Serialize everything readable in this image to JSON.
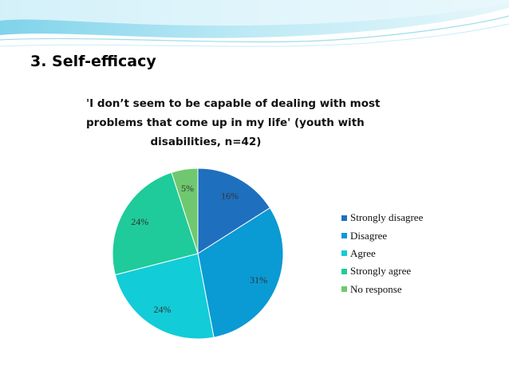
{
  "slide": {
    "heading": "3. Self-efficacy"
  },
  "chart_data": {
    "type": "pie",
    "title_lines": [
      "'I don’t seem to be capable of dealing with most",
      "problems that come up in my life' (youth with",
      "disabilities, n=42)"
    ],
    "categories": [
      "Strongly disagree",
      "Disagree",
      "Agree",
      "Strongly agree",
      "No response"
    ],
    "values": [
      16,
      31,
      24,
      24,
      5
    ],
    "data_labels": [
      "16%",
      "31%",
      "24%",
      "24%",
      "5%"
    ],
    "colors": [
      "#1F6FBF",
      "#0A9AD4",
      "#12CCD8",
      "#1FCB9A",
      "#6FC86F"
    ],
    "legend_position": "right",
    "start_angle_deg": 0,
    "direction": "clockwise"
  }
}
